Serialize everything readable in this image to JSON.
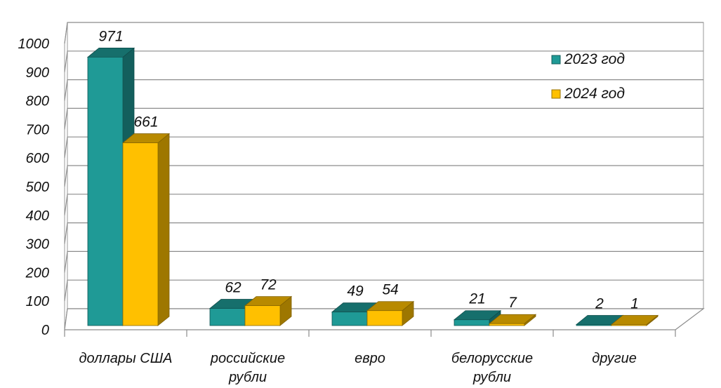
{
  "chart_data": {
    "type": "bar",
    "title": "",
    "xlabel": "",
    "ylabel": "",
    "categories": [
      [
        "доллары США"
      ],
      [
        "российские",
        "рубли"
      ],
      [
        "евро"
      ],
      [
        "белорусские",
        "рубли"
      ],
      [
        "другие"
      ]
    ],
    "series": [
      {
        "name": "2023 год",
        "color": "#1f9a96",
        "values": [
          971,
          62,
          49,
          21,
          2
        ]
      },
      {
        "name": "2024 год",
        "color": "#ffc000",
        "values": [
          661,
          72,
          54,
          7,
          1
        ]
      }
    ],
    "ylim": [
      0,
      1000
    ],
    "yticks": [
      0,
      100,
      200,
      300,
      400,
      500,
      600,
      700,
      800,
      900,
      1000
    ],
    "grid": true,
    "legend": "top-right",
    "three_d": true
  }
}
